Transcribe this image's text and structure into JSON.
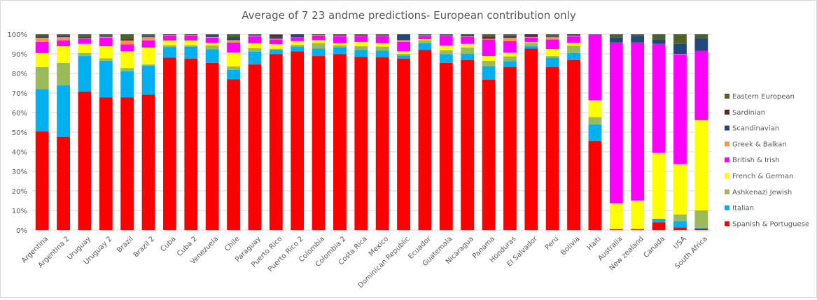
{
  "chart_data": {
    "type": "bar",
    "stacked": true,
    "percent_stacked": true,
    "title": "Average of 7   23 andme predictions- European contribution only",
    "xlabel": "",
    "ylabel": "",
    "ylim": [
      0,
      100
    ],
    "y_ticks": [
      "0%",
      "10%",
      "20%",
      "30%",
      "40%",
      "50%",
      "60%",
      "70%",
      "80%",
      "90%",
      "100%"
    ],
    "grid": true,
    "legend_position": "right",
    "categories": [
      "Argentina",
      "Argentina 2",
      "Uruguay",
      "Uruguay 2",
      "Brazil",
      "Brazil 2",
      "Cuba",
      "Cuba 2",
      "Venezuela",
      "Chile",
      "Paraguay",
      "Puerto Rico",
      "Puerto Rico 2",
      "Colombia",
      "Colombia 2",
      "Costa Rica",
      "Mexico",
      "Dominican Republic",
      "Ecuador",
      "Guatemala",
      "Nicaragua",
      "Panama",
      "Honduras",
      "El Salvador",
      "Peru",
      "Bolivia",
      "Haiti",
      "Australia",
      "New zealand",
      "Canada",
      "USA",
      "South Africa"
    ],
    "series": [
      {
        "name": "Spanish & Portuguese",
        "color": "#ff0000",
        "values": [
          50.4,
          47.5,
          70.8,
          67.8,
          67.8,
          69.2,
          88.2,
          87.8,
          85.4,
          77.0,
          84.6,
          89.9,
          91.3,
          88.9,
          89.9,
          88.5,
          88.2,
          87.5,
          92.0,
          85.4,
          86.8,
          76.8,
          83.2,
          92.7,
          83.2,
          86.8,
          45.4,
          0.5,
          0.5,
          3.9,
          1.3,
          0.8
        ]
      },
      {
        "name": "Italian",
        "color": "#00b0f0",
        "values": [
          21.6,
          26.4,
          18.1,
          18.7,
          13.3,
          14.7,
          5.4,
          6.1,
          6.9,
          4.8,
          6.5,
          2.1,
          2.4,
          3.8,
          3.3,
          3.5,
          3.4,
          1.7,
          3.4,
          4.4,
          3.3,
          6.9,
          3.1,
          1.2,
          4.8,
          3.6,
          8.5,
          0.0,
          0.0,
          1.9,
          3.3,
          0.4
        ]
      },
      {
        "name": "Ashkenazi Jewish",
        "color": "#9bbb59",
        "values": [
          11.2,
          11.5,
          1.5,
          1.2,
          1.7,
          0.7,
          1.0,
          0.7,
          2.0,
          1.8,
          1.8,
          0.6,
          0.9,
          2.9,
          1.1,
          1.9,
          2.1,
          0.8,
          1.6,
          2.0,
          3.1,
          2.8,
          2.4,
          1.7,
          0.9,
          3.8,
          3.8,
          0.0,
          0.0,
          0.0,
          3.4,
          8.9
        ]
      },
      {
        "name": "French & German",
        "color": "#ffff00",
        "values": [
          7.2,
          8.5,
          4.7,
          6.2,
          8.5,
          8.6,
          2.4,
          2.4,
          1.3,
          7.1,
          2.5,
          2.4,
          1.9,
          1.4,
          1.1,
          2.2,
          1.7,
          1.3,
          0.5,
          2.4,
          1.9,
          2.4,
          1.9,
          0.4,
          3.6,
          1.4,
          8.6,
          13.2,
          14.6,
          33.6,
          25.7,
          46.0
        ]
      },
      {
        "name": "British & Irish",
        "color": "#ff00ff",
        "values": [
          5.7,
          2.9,
          2.6,
          4.3,
          3.6,
          3.6,
          2.6,
          2.6,
          2.6,
          5.1,
          3.5,
          2.3,
          1.7,
          2.3,
          3.5,
          2.8,
          3.5,
          4.8,
          1.7,
          5.0,
          3.6,
          8.4,
          5.9,
          2.2,
          4.8,
          3.3,
          33.7,
          82.1,
          80.7,
          55.7,
          55.9,
          35.5
        ]
      },
      {
        "name": "Greek & Balkan",
        "color": "#f79646",
        "values": [
          2.1,
          1.7,
          0.3,
          0.4,
          1.9,
          1.7,
          0.2,
          0.2,
          0.4,
          1.2,
          0.4,
          0.4,
          0.2,
          0.3,
          0.3,
          0.2,
          0.2,
          0.9,
          0.2,
          0.2,
          0.3,
          0.3,
          1.7,
          0.3,
          1.2,
          0.4,
          0.0,
          0.0,
          0.0,
          0.0,
          0.3,
          0.0
        ]
      },
      {
        "name": "Scandinavian",
        "color": "#1f497d",
        "values": [
          0.7,
          0.8,
          0.2,
          0.2,
          0.5,
          0.5,
          0.2,
          0.2,
          0.9,
          1.2,
          0.3,
          1.0,
          1.5,
          0.2,
          0.2,
          0.2,
          0.3,
          3.0,
          0.2,
          0.3,
          0.8,
          0.3,
          1.0,
          0.2,
          0.3,
          0.2,
          0.0,
          2.7,
          3.4,
          2.2,
          5.2,
          6.4
        ]
      },
      {
        "name": "Sardinian",
        "color": "#632523",
        "values": [
          0.2,
          0.2,
          0.4,
          0.2,
          0.2,
          0.2,
          0.2,
          0.2,
          0.1,
          0.2,
          0.2,
          1.0,
          0.1,
          0.2,
          0.4,
          0.2,
          0.2,
          0.0,
          0.2,
          0.1,
          0.2,
          0.9,
          0.2,
          1.3,
          0.2,
          0.5,
          0.0,
          0.0,
          0.0,
          0.0,
          0.0,
          0.0
        ]
      },
      {
        "name": "Eastern European",
        "color": "#4f6228",
        "values": [
          0.9,
          0.5,
          1.4,
          1.0,
          2.5,
          0.8,
          0.0,
          0.0,
          0.4,
          1.6,
          0.2,
          0.3,
          0.0,
          0.0,
          0.2,
          0.5,
          0.4,
          0.0,
          0.2,
          0.2,
          0.0,
          1.2,
          0.6,
          0.0,
          1.0,
          0.0,
          0.0,
          1.5,
          0.8,
          2.7,
          4.9,
          2.0
        ]
      }
    ],
    "legend_order": [
      "Eastern European",
      "Sardinian",
      "Scandinavian",
      "Greek & Balkan",
      "British & Irish",
      "French & German",
      "Ashkenazi Jewish",
      "Italian",
      "Spanish & Portuguese"
    ]
  }
}
